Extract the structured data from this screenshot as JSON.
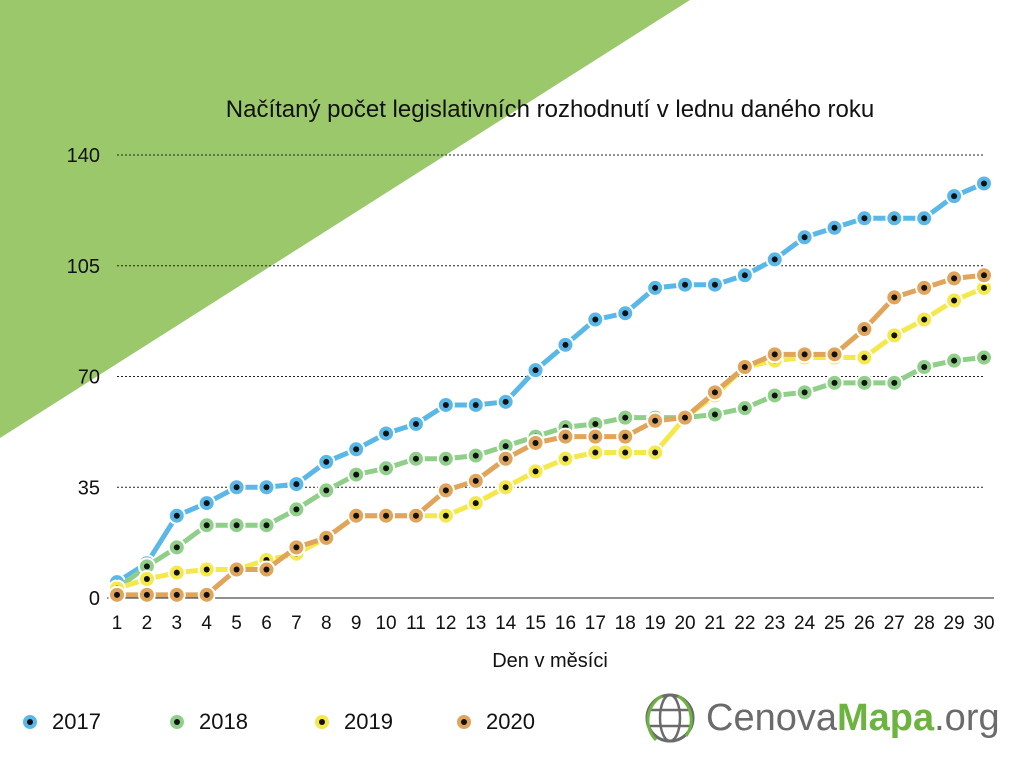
{
  "colors": {
    "accent_green": "#9bc86b",
    "brand_green": "#6cb33f",
    "brand_gray": "#6b6b6b"
  },
  "chart_data": {
    "type": "line",
    "title": "Načítaný počet legislativních rozhodnutí v lednu daného roku",
    "xlabel": "Den v měsíci",
    "ylabel": "",
    "ylim": [
      0,
      140
    ],
    "yticks": [
      0,
      35,
      70,
      105,
      140
    ],
    "grid": true,
    "legend_position": "bottom-left",
    "x": [
      1,
      2,
      3,
      4,
      5,
      6,
      7,
      8,
      9,
      10,
      11,
      12,
      13,
      14,
      15,
      16,
      17,
      18,
      19,
      20,
      21,
      22,
      23,
      24,
      25,
      26,
      27,
      28,
      29,
      30
    ],
    "series": [
      {
        "name": "2017",
        "color": "#5ab8e8",
        "values": [
          5,
          11,
          26,
          30,
          35,
          35,
          36,
          43,
          47,
          52,
          55,
          61,
          61,
          62,
          72,
          80,
          88,
          90,
          98,
          99,
          99,
          102,
          107,
          114,
          117,
          120,
          120,
          120,
          127,
          131
        ]
      },
      {
        "name": "2018",
        "color": "#90cf8a",
        "values": [
          3,
          10,
          16,
          23,
          23,
          23,
          28,
          34,
          39,
          41,
          44,
          44,
          45,
          48,
          51,
          54,
          55,
          57,
          57,
          57,
          58,
          60,
          64,
          65,
          68,
          68,
          68,
          73,
          75,
          76
        ]
      },
      {
        "name": "2019",
        "color": "#f4e84a",
        "values": [
          3,
          6,
          8,
          9,
          9,
          12,
          14,
          19,
          26,
          26,
          26,
          26,
          30,
          35,
          40,
          44,
          46,
          46,
          46,
          57,
          64,
          73,
          75,
          76,
          76,
          76,
          83,
          88,
          94,
          98
        ]
      },
      {
        "name": "2020",
        "color": "#e0a55a",
        "values": [
          1,
          1,
          1,
          1,
          9,
          9,
          16,
          19,
          26,
          26,
          26,
          34,
          37,
          44,
          49,
          51,
          51,
          51,
          56,
          57,
          65,
          73,
          77,
          77,
          77,
          85,
          95,
          98,
          101,
          102
        ]
      }
    ]
  },
  "brand": {
    "part1": "Cenova",
    "part2": "Mapa",
    "part3": ".org"
  }
}
